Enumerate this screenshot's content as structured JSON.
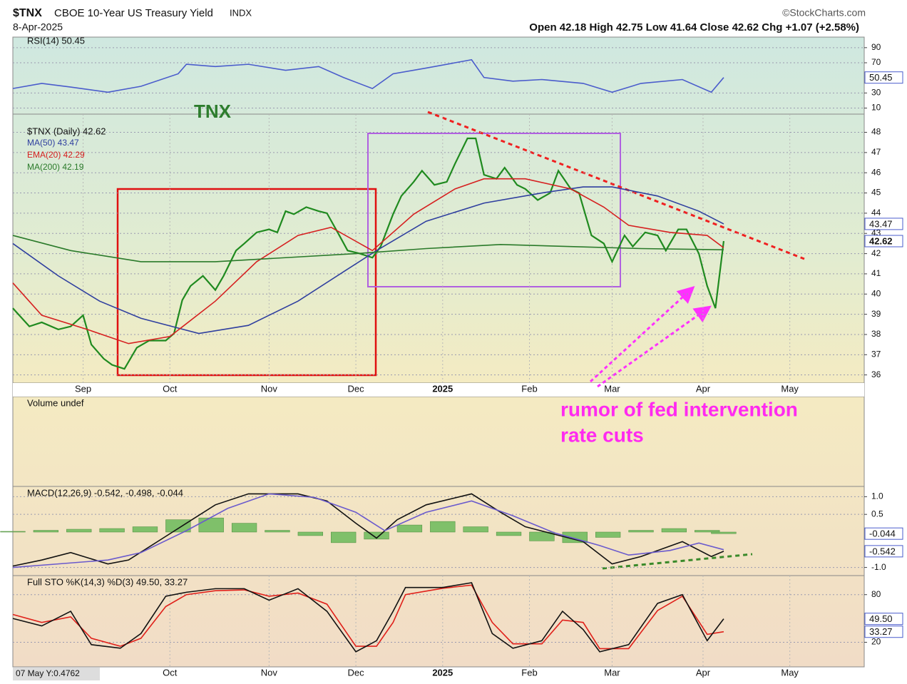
{
  "header": {
    "symbol": "$TNX",
    "description": "CBOE 10-Year US Treasury Yield",
    "exchange": "INDX",
    "date": "8-Apr-2025",
    "credit": "©StockCharts.com",
    "quote": "Open 42.18 High 42.75 Low 41.64 Close 42.62 Chg +1.07 (+2.58%)"
  },
  "footer": "07 May Y:0.4762",
  "chart_data": [
    {
      "type": "line",
      "title": "RSI(14) 50.45",
      "xlim": [
        0,
        206
      ],
      "ylim": [
        2,
        104
      ],
      "yticks": [
        90,
        70,
        30,
        10
      ],
      "tags": [
        50.45
      ],
      "series": [
        {
          "color": "#4a5ccc",
          "x": [
            0,
            7,
            14,
            23,
            31,
            40,
            42,
            49,
            57,
            66,
            74,
            80,
            87,
            92,
            100,
            109,
            111,
            114,
            121,
            128,
            138,
            145,
            152,
            162,
            169,
            172
          ],
          "values": [
            35.9,
            42.7,
            37.8,
            31,
            38.8,
            55.4,
            68,
            65,
            68,
            60,
            65,
            50.5,
            35.9,
            55.4,
            63,
            72,
            74,
            50.5,
            45.6,
            47.8,
            42.7,
            31,
            42.7,
            47.8,
            31,
            50.45
          ]
        }
      ]
    },
    {
      "type": "line",
      "title": "$TNX (Daily) 42.62",
      "annotations": [
        "TNX"
      ],
      "xlim": [
        0,
        206
      ],
      "ylim": [
        35.6,
        48.9
      ],
      "yticks": [
        36,
        37,
        38,
        39,
        40,
        41,
        42,
        43,
        44,
        45,
        46,
        47,
        48
      ],
      "xticks": [
        {
          "value": 17,
          "label": "Sep"
        },
        {
          "value": 38,
          "label": "Oct"
        },
        {
          "value": 62,
          "label": "Nov"
        },
        {
          "value": 83,
          "label": "Dec"
        },
        {
          "value": 104,
          "label": "2025"
        },
        {
          "value": 125,
          "label": "Feb"
        },
        {
          "value": 145,
          "label": "Mar"
        },
        {
          "value": 167,
          "label": "Apr"
        },
        {
          "value": 188,
          "label": "May"
        }
      ],
      "tags": [
        43.47,
        42.62
      ],
      "series": [
        {
          "color": "#1f8a1f",
          "x": [
            0,
            4,
            7,
            11,
            14,
            17,
            19,
            22,
            24,
            27,
            30,
            33,
            37,
            39,
            41,
            43,
            46,
            49,
            51,
            54,
            56,
            59,
            62,
            64,
            66,
            68,
            71,
            74,
            76,
            79,
            81,
            84,
            87,
            89,
            92,
            94,
            97,
            99,
            102,
            105,
            107,
            110,
            112,
            114,
            117,
            119,
            122,
            124,
            127,
            130,
            132,
            135,
            137,
            140,
            143,
            145,
            148,
            150,
            153,
            156,
            158,
            161,
            163,
            166,
            168,
            170,
            172
          ],
          "values": [
            39.3,
            38.4,
            38.6,
            38.25,
            38.4,
            38.95,
            37.5,
            36.8,
            36.5,
            36.3,
            37.35,
            37.7,
            37.7,
            38.05,
            39.7,
            40.4,
            40.9,
            40.2,
            40.9,
            42.15,
            42.5,
            43.05,
            43.2,
            43.05,
            44.1,
            43.95,
            44.3,
            44.1,
            44.0,
            42.9,
            42.15,
            42.0,
            41.8,
            42.35,
            43.95,
            44.85,
            45.55,
            46.1,
            45.4,
            45.55,
            46.45,
            47.7,
            47.7,
            45.9,
            45.7,
            46.25,
            45.4,
            45.2,
            44.65,
            45.0,
            46.1,
            45.2,
            45.0,
            42.9,
            42.5,
            41.6,
            42.9,
            42.35,
            43.05,
            42.9,
            42.15,
            43.2,
            43.2,
            42.0,
            40.4,
            39.3,
            42.62
          ]
        },
        {
          "name": "MA(50) 43.47",
          "color": "#2f3f9f",
          "x": [
            0,
            11,
            21,
            31,
            45,
            57,
            69,
            80,
            88,
            100,
            114,
            128,
            138,
            145,
            156,
            166,
            172
          ],
          "values": [
            42.5,
            40.9,
            39.65,
            38.8,
            38.05,
            38.45,
            39.65,
            41.1,
            42.15,
            43.6,
            44.5,
            45.0,
            45.3,
            45.3,
            44.85,
            44.1,
            43.47
          ]
        },
        {
          "name": "EMA(20) 42.29",
          "color": "#d62020",
          "x": [
            0,
            7,
            18,
            28,
            38,
            49,
            59,
            69,
            77,
            87,
            97,
            107,
            114,
            124,
            135,
            143,
            149,
            159,
            168,
            172
          ],
          "values": [
            40.55,
            38.95,
            38.25,
            37.55,
            37.9,
            39.65,
            41.6,
            42.9,
            43.3,
            42.15,
            43.95,
            45.2,
            45.7,
            45.7,
            45.2,
            44.3,
            43.4,
            43.05,
            42.9,
            42.29
          ]
        },
        {
          "name": "MA(200) 42.19",
          "color": "#2a7a2a",
          "x": [
            0,
            14,
            31,
            49,
            66,
            83,
            100,
            118,
            135,
            152,
            172
          ],
          "values": [
            42.9,
            42.15,
            41.6,
            41.6,
            41.8,
            42.0,
            42.25,
            42.45,
            42.35,
            42.25,
            42.19
          ]
        }
      ]
    },
    {
      "type": "volume",
      "title": "Volume undef",
      "annotations": [
        "rumor of fed intervention",
        "rate cuts"
      ]
    },
    {
      "type": "line",
      "title": "MACD(12,26,9) -0.542, -0.498, -0.044",
      "xlim": [
        0,
        206
      ],
      "ylim": [
        -1.23,
        1.29
      ],
      "yticks": [
        {
          "value": 1,
          "label": "1.0"
        },
        0.5,
        {
          "value": -1,
          "label": "-1.0"
        }
      ],
      "tags": [
        -0.044,
        -0.542
      ],
      "series": [
        {
          "type": "bar",
          "color": "#7fc06a",
          "x": [
            0,
            8,
            16,
            24,
            32,
            40,
            48,
            56,
            64,
            72,
            80,
            88,
            96,
            104,
            112,
            120,
            128,
            136,
            144,
            152,
            160,
            168,
            172
          ],
          "values": [
            0.02,
            0.05,
            0.08,
            0.1,
            0.15,
            0.35,
            0.4,
            0.25,
            0.05,
            -0.1,
            -0.3,
            -0.2,
            0.2,
            0.3,
            0.15,
            -0.1,
            -0.25,
            -0.3,
            -0.15,
            0.05,
            0.1,
            0.05,
            -0.044
          ]
        },
        {
          "color": "#111111",
          "x": [
            0,
            7,
            14,
            23,
            28,
            35,
            42,
            49,
            57,
            69,
            76,
            83,
            88,
            93,
            100,
            111,
            118,
            124,
            131,
            138,
            145,
            152,
            162,
            169,
            172
          ],
          "values": [
            -0.96,
            -0.79,
            -0.58,
            -0.9,
            -0.79,
            -0.27,
            0.25,
            0.77,
            1.08,
            1.08,
            0.88,
            0.25,
            -0.17,
            0.35,
            0.77,
            1.08,
            0.56,
            0.15,
            -0.06,
            -0.27,
            -0.9,
            -0.69,
            -0.27,
            -0.69,
            -0.542
          ]
        },
        {
          "color": "#6a5acd",
          "x": [
            0,
            11,
            23,
            31,
            42,
            52,
            62,
            73,
            83,
            90,
            100,
            111,
            121,
            131,
            142,
            149,
            159,
            166,
            172
          ],
          "values": [
            -1.0,
            -0.9,
            -0.79,
            -0.58,
            0.04,
            0.67,
            1.08,
            0.98,
            0.56,
            0.04,
            0.56,
            0.88,
            0.46,
            -0.02,
            -0.38,
            -0.65,
            -0.52,
            -0.31,
            -0.498
          ]
        }
      ]
    },
    {
      "type": "line",
      "title": "Full STO %K(14,3) %D(3) 49.50, 33.27",
      "xlim": [
        0,
        206
      ],
      "ylim": [
        -11,
        104
      ],
      "yticks": [
        80,
        20
      ],
      "xticks": [
        {
          "value": 38,
          "label": "Oct"
        },
        {
          "value": 62,
          "label": "Nov"
        },
        {
          "value": 83,
          "label": "Dec"
        },
        {
          "value": 104,
          "label": "2025"
        },
        {
          "value": 125,
          "label": "Feb"
        },
        {
          "value": 145,
          "label": "Mar"
        },
        {
          "value": 167,
          "label": "Apr"
        },
        {
          "value": 188,
          "label": "May"
        }
      ],
      "tags": [
        {
          "value": 49.5,
          "label": "49.50"
        },
        33.27
      ],
      "series": [
        {
          "color": "#e0201a",
          "x": [
            0,
            7,
            14,
            19,
            26,
            31,
            37,
            42,
            49,
            56,
            62,
            69,
            76,
            83,
            88,
            92,
            95,
            104,
            111,
            116,
            121,
            128,
            133,
            138,
            142,
            149,
            156,
            162,
            168,
            172
          ],
          "values": [
            55,
            45,
            52,
            25,
            15,
            25,
            65,
            80,
            85,
            86,
            78,
            82,
            68,
            15,
            15,
            45,
            80,
            88,
            92,
            45,
            18,
            18,
            48,
            45,
            12,
            12,
            60,
            78,
            30,
            33.27
          ]
        },
        {
          "color": "#111111",
          "x": [
            0,
            7,
            14,
            19,
            26,
            31,
            37,
            42,
            49,
            56,
            62,
            69,
            76,
            83,
            88,
            92,
            95,
            104,
            111,
            116,
            121,
            128,
            133,
            138,
            142,
            149,
            156,
            162,
            168,
            172
          ],
          "values": [
            50,
            40.6,
            59,
            17,
            12.5,
            31,
            78,
            83,
            87.5,
            87.5,
            73,
            87.5,
            59,
            8,
            22,
            59,
            89,
            89,
            95,
            31,
            12.5,
            22,
            59,
            36,
            8,
            17,
            69,
            80,
            22,
            49.5
          ]
        }
      ]
    }
  ]
}
